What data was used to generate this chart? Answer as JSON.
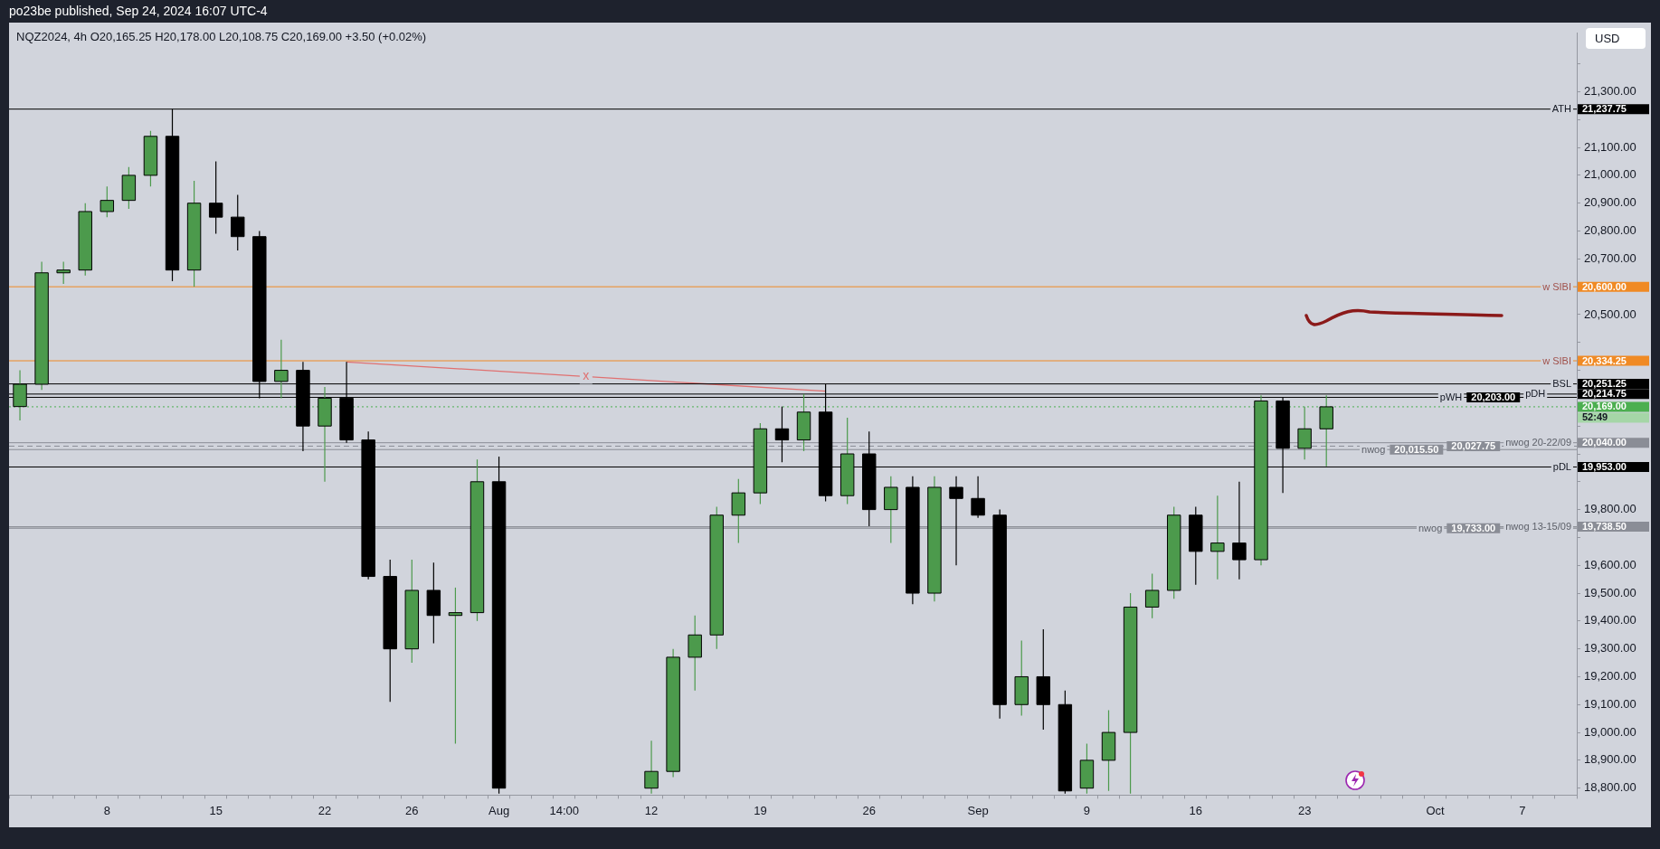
{
  "chart_data": {
    "type": "candlestick",
    "title": "po23be published, Sep 24, 2024 16:07 UTC-4",
    "subtitle": "NQZ2024, 4h  O20,165.25 H20,178.00 L20,108.75 C20,169.00 +3.50 (+0.02%)",
    "categories": [
      null,
      null,
      null,
      null,
      "8",
      null,
      null,
      null,
      null,
      "15",
      null,
      null,
      null,
      null,
      "22",
      null,
      null,
      null,
      "26",
      null,
      null,
      null,
      "Aug",
      null,
      null,
      "14:00",
      null,
      null,
      null,
      "12",
      null,
      null,
      null,
      null,
      "19",
      null,
      null,
      null,
      null,
      "26",
      null,
      null,
      null,
      null,
      "Sep",
      null,
      null,
      null,
      null,
      "9",
      null,
      null,
      null,
      null,
      "16",
      null,
      null,
      null,
      null,
      "23",
      null,
      null,
      null,
      null,
      null,
      "Oct",
      null,
      null,
      null,
      "7",
      null,
      null
    ],
    "colors": [
      "#4c9a4c",
      "#4c9a4c",
      "#4c9a4c",
      "#4c9a4c",
      "#4c9a4c",
      "#4c9a4c",
      "#4c9a4c",
      "#000000",
      "#4c9a4c",
      "#000000",
      "#000000",
      "#000000",
      "#4c9a4c",
      "#000000",
      "#4c9a4c",
      "#000000",
      "#000000",
      "#000000",
      "#4c9a4c",
      "#000000",
      "#4c9a4c",
      "#4c9a4c",
      "#000000",
      null,
      null,
      null,
      null,
      null,
      null,
      "#4c9a4c",
      "#4c9a4c",
      "#4c9a4c",
      "#4c9a4c",
      "#4c9a4c",
      "#4c9a4c",
      "#000000",
      "#4c9a4c",
      "#000000",
      "#4c9a4c",
      "#000000",
      "#4c9a4c",
      "#000000",
      "#4c9a4c",
      "#000000",
      "#000000",
      "#000000",
      "#4c9a4c",
      "#000000",
      "#000000",
      "#4c9a4c",
      "#4c9a4c",
      "#4c9a4c",
      "#4c9a4c",
      "#4c9a4c",
      "#000000",
      "#4c9a4c",
      "#000000",
      "#4c9a4c",
      "#000000",
      "#4c9a4c",
      "#4c9a4c",
      null,
      null,
      null,
      null,
      null,
      null,
      null,
      null,
      null,
      null,
      null
    ],
    "ohlc": [
      [
        20170,
        20300,
        20120,
        20250
      ],
      [
        20250,
        20690,
        20230,
        20650
      ],
      [
        20650,
        20690,
        20610,
        20660
      ],
      [
        20660,
        20900,
        20640,
        20870
      ],
      [
        20870,
        20960,
        20850,
        20910
      ],
      [
        20910,
        21030,
        20880,
        21000
      ],
      [
        21000,
        21160,
        20960,
        21140
      ],
      [
        21140,
        21237.75,
        20620,
        20660
      ],
      [
        20660,
        20980,
        20600,
        20900
      ],
      [
        20900,
        21050,
        20790,
        20850
      ],
      [
        20850,
        20930,
        20730,
        20780
      ],
      [
        20780,
        20800,
        20200,
        20260
      ],
      [
        20260,
        20410,
        20200,
        20300
      ],
      [
        20300,
        20330,
        20010,
        20100
      ],
      [
        20100,
        20240,
        19900,
        20200
      ],
      [
        20200,
        20330,
        20040,
        20050
      ],
      [
        20050,
        20080,
        19550,
        19560
      ],
      [
        19560,
        19620,
        19110,
        19300
      ],
      [
        19300,
        19620,
        19250,
        19510
      ],
      [
        19510,
        19610,
        19320,
        19420
      ],
      [
        19420,
        19520,
        18960,
        19430
      ],
      [
        19430,
        19980,
        19400,
        19900
      ],
      [
        19900,
        19990,
        18780,
        18800
      ],
      null,
      null,
      null,
      null,
      null,
      null,
      [
        18800,
        18970,
        18780,
        18860
      ],
      [
        18860,
        19300,
        18840,
        19270
      ],
      [
        19270,
        19420,
        19150,
        19350
      ],
      [
        19350,
        19810,
        19300,
        19780
      ],
      [
        19780,
        19910,
        19680,
        19860
      ],
      [
        19860,
        20110,
        19820,
        20090
      ],
      [
        20090,
        20170,
        19970,
        20050
      ],
      [
        20050,
        20215,
        20010,
        20150
      ],
      [
        20150,
        20250,
        19830,
        19850
      ],
      [
        19850,
        20130,
        19820,
        20000
      ],
      [
        20000,
        20080,
        19740,
        19800
      ],
      [
        19800,
        19920,
        19680,
        19880
      ],
      [
        19880,
        19920,
        19460,
        19500
      ],
      [
        19500,
        19920,
        19470,
        19880
      ],
      [
        19880,
        19920,
        19600,
        19840
      ],
      [
        19840,
        19920,
        19770,
        19780
      ],
      [
        19780,
        19800,
        19050,
        19100
      ],
      [
        19100,
        19330,
        19060,
        19200
      ],
      [
        19200,
        19370,
        19010,
        19100
      ],
      [
        19100,
        19150,
        18780,
        18790
      ],
      [
        18800,
        18960,
        18780,
        18900
      ],
      [
        18900,
        19080,
        18790,
        19000
      ],
      [
        19000,
        19500,
        18780,
        19450
      ],
      [
        19450,
        19570,
        19410,
        19510
      ],
      [
        19510,
        19810,
        19480,
        19780
      ],
      [
        19780,
        19810,
        19530,
        19650
      ],
      [
        19650,
        19850,
        19550,
        19680
      ],
      [
        19680,
        19900,
        19550,
        19620
      ],
      [
        19620,
        20210,
        19600,
        20190
      ],
      [
        20190,
        20203,
        19860,
        20020
      ],
      [
        20020,
        20170,
        19980,
        20090
      ],
      [
        20090,
        20210,
        19955,
        20169
      ],
      null,
      null,
      null,
      null,
      null,
      null,
      null,
      null,
      null,
      null,
      null
    ],
    "series": [
      {
        "type": "line",
        "name": "x",
        "color": "#e07070",
        "values": [
          null,
          null,
          null,
          null,
          null,
          null,
          null,
          null,
          null,
          null,
          null,
          null,
          null,
          null,
          null,
          20330,
          null,
          null,
          null,
          null,
          null,
          null,
          null,
          null,
          null,
          null,
          null,
          null,
          null,
          null,
          null,
          null,
          null,
          null,
          null,
          null,
          null,
          20225,
          null,
          null,
          null,
          null,
          null,
          null,
          null,
          null,
          null,
          null,
          null,
          null,
          null,
          null,
          null,
          null,
          null,
          null,
          null,
          null,
          null,
          null,
          null,
          null,
          null,
          null,
          null,
          null,
          null,
          null,
          null,
          null,
          null,
          null
        ]
      }
    ],
    "ylim": [
      18775,
      21510
    ],
    "yticks": [
      {
        "value": 18800,
        "label": "18,800.00"
      },
      {
        "value": 18900,
        "label": "18,900.00"
      },
      {
        "value": 19000,
        "label": "19,000.00"
      },
      {
        "value": 19100,
        "label": "19,100.00"
      },
      {
        "value": 19200,
        "label": "19,200.00"
      },
      {
        "value": 19300,
        "label": "19,300.00"
      },
      {
        "value": 19400,
        "label": "19,400.00"
      },
      {
        "value": 19500,
        "label": "19,500.00"
      },
      {
        "value": 19600,
        "label": "19,600.00"
      },
      {
        "value": 19700,
        "label": null
      },
      {
        "value": 19738.5,
        "label": "19,738.50"
      },
      {
        "value": 19800,
        "label": "19,800.00"
      },
      {
        "value": 19900,
        "label": null
      },
      {
        "value": 19953,
        "label": "19,953.00"
      },
      {
        "value": 20000,
        "label": null
      },
      {
        "value": 20040,
        "label": "20,040.00"
      },
      {
        "value": 20100,
        "label": null
      },
      {
        "value": 20169,
        "label": "20,169.00"
      },
      {
        "value": 20200,
        "label": null
      },
      {
        "value": 20214.75,
        "label": "20,214.75"
      },
      {
        "value": 20251.25,
        "label": "20,251.25"
      },
      {
        "value": 20300,
        "label": null
      },
      {
        "value": 20334.25,
        "label": "20,334.25"
      },
      {
        "value": 20400,
        "label": null
      },
      {
        "value": 20500,
        "label": "20,500.00"
      },
      {
        "value": 20600,
        "label": "20,600.00"
      },
      {
        "value": 20700,
        "label": "20,700.00"
      },
      {
        "value": 20800,
        "label": "20,800.00"
      },
      {
        "value": 20900,
        "label": "20,900.00"
      },
      {
        "value": 21000,
        "label": "21,000.00"
      },
      {
        "value": 21100,
        "label": "21,100.00"
      },
      {
        "value": 21200,
        "label": null
      },
      {
        "value": 21237.75,
        "label": "21,237.75"
      },
      {
        "value": 21300,
        "label": "21,300.00"
      },
      {
        "value": 21400,
        "label": null
      }
    ],
    "ref_lines": [
      {
        "axis": "y",
        "value": 21237.75,
        "label": "ATH",
        "color": "#000000"
      },
      {
        "axis": "y",
        "value": 20600,
        "label": "w SIBI",
        "color": "#f08a24"
      },
      {
        "axis": "y",
        "value": 20334.25,
        "label": "w SIBI",
        "color": "#f08a24"
      },
      {
        "axis": "y",
        "value": 20251.25,
        "label": "BSL",
        "color": "#000000"
      },
      {
        "axis": "y",
        "value": 20214.75,
        "label": "pDH",
        "color": "#000000"
      },
      {
        "axis": "y",
        "value": 20203,
        "label": "pWH",
        "color": "#000000"
      },
      {
        "axis": "y",
        "value": 20169,
        "label": null,
        "color": "#4caf50",
        "line_style": "dotted"
      },
      {
        "axis": "y",
        "value": 20040,
        "label": "nwog 20-22/09",
        "color": "#8a8d96"
      },
      {
        "axis": "y",
        "value": 20027.75,
        "label": null,
        "color": "#8a8d96",
        "line_style": "dashed"
      },
      {
        "axis": "y",
        "value": 20015.5,
        "label": "nwog",
        "color": "#8a8d96"
      },
      {
        "axis": "y",
        "value": 19953,
        "label": "pDL",
        "color": "#000000"
      }
    ],
    "bands": [
      {
        "axis": "y",
        "from": 19733,
        "to": 19738.5,
        "label": "nwog 13-15/09",
        "color": "#8a8d96"
      }
    ],
    "annotations": [
      "USD",
      "52:49",
      {
        "text": "20,203.00",
        "y": 20203
      },
      {
        "text": "20,027.75",
        "y": 20027.75
      },
      {
        "text": "20,015.50",
        "y": 20015.5
      },
      {
        "text": "19,733.00",
        "y": 19733
      },
      {
        "text": "nwog",
        "y": 19733
      }
    ]
  }
}
